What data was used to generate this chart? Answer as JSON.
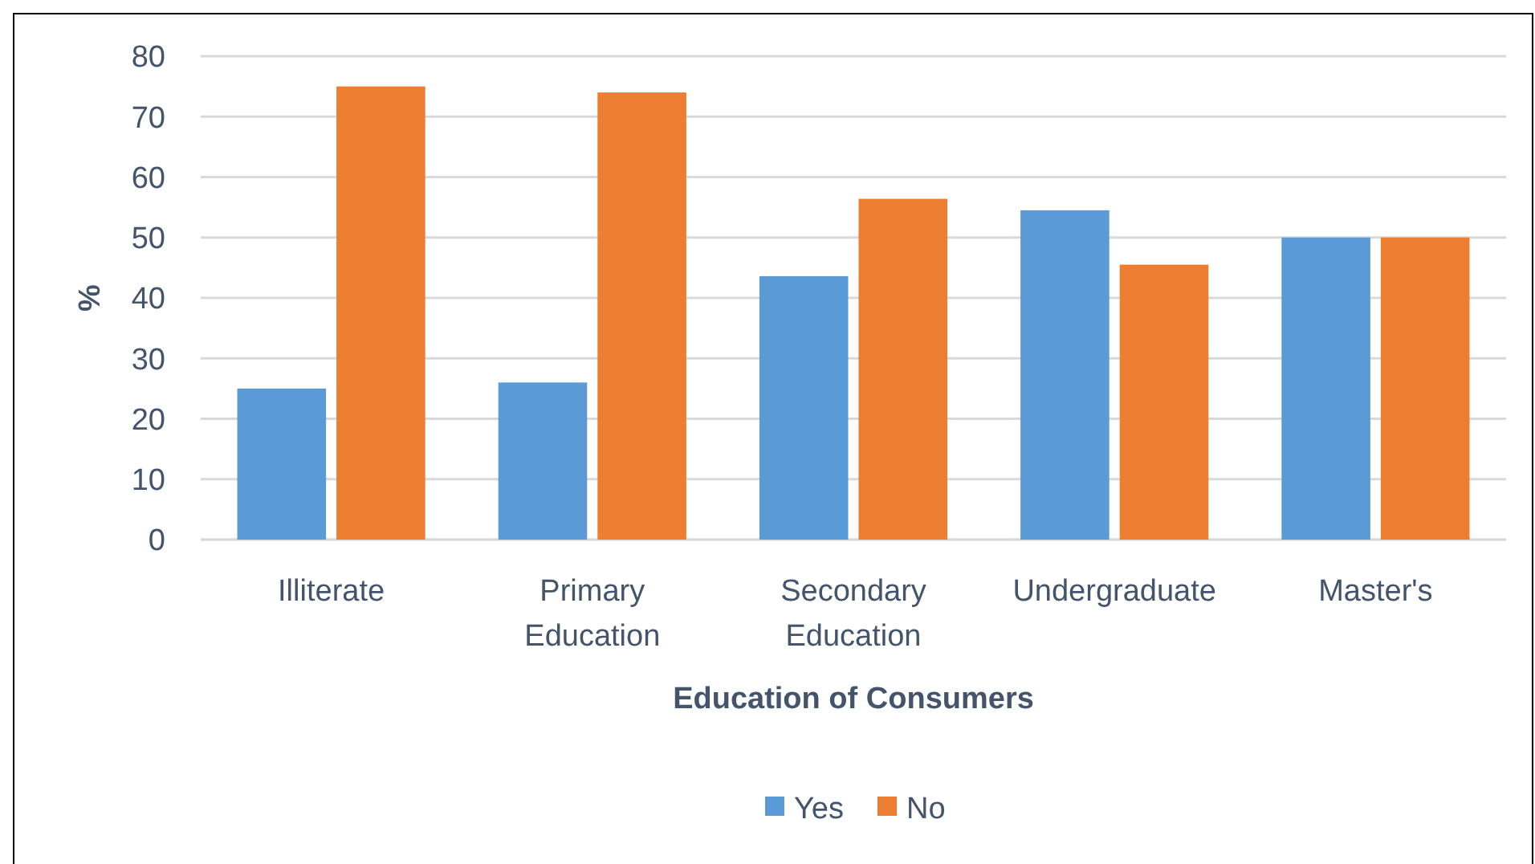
{
  "chart_data": {
    "type": "bar",
    "xlabel": "Education of Consumers",
    "ylabel": "%",
    "categories": [
      "Illiterate",
      "Primary Education",
      "Secondary Education",
      "Undergraduate",
      "Master's"
    ],
    "series": [
      {
        "name": "Yes",
        "color": "#5b9bd5",
        "values": [
          25,
          26,
          43.6,
          54.5,
          50
        ]
      },
      {
        "name": "No",
        "color": "#ed7d31",
        "values": [
          75,
          74,
          56.4,
          45.5,
          50
        ]
      }
    ],
    "ylim": [
      0,
      80
    ],
    "yticks": [
      0,
      10,
      20,
      30,
      40,
      50,
      60,
      70,
      80
    ],
    "grid": "y",
    "legend": "bottom"
  }
}
